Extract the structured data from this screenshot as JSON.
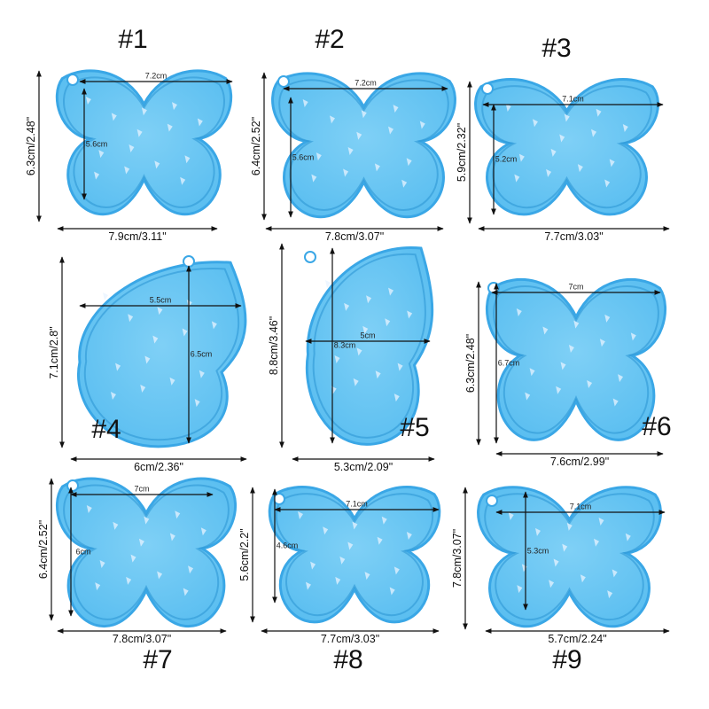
{
  "molds": [
    {
      "number": "#1",
      "height_label": "6.3cm/2.48\"",
      "width_label": "7.9cm/3.11\"",
      "inner_width": "7.2cm",
      "inner_height": "5.6cm"
    },
    {
      "number": "#2",
      "height_label": "6.4cm/2.52\"",
      "width_label": "7.8cm/3.07\"",
      "inner_width": "7.2cm",
      "inner_height": "5.6cm"
    },
    {
      "number": "#3",
      "height_label": "5.9cm/2.32\"",
      "width_label": "7.7cm/3.03\"",
      "inner_width": "7.1cm",
      "inner_height": "5.2cm"
    },
    {
      "number": "#4",
      "height_label": "7.1cm/2.8\"",
      "width_label": "6cm/2.36\"",
      "inner_width": "5.5cm",
      "inner_height": "6.5cm"
    },
    {
      "number": "#5",
      "height_label": "8.8cm/3.46\"",
      "width_label": "5.3cm/2.09\"",
      "inner_width": "5cm",
      "inner_height": "8.3cm"
    },
    {
      "number": "#6",
      "height_label": "6.3cm/2.48\"",
      "width_label": "7.6cm/2.99\"",
      "inner_width": "7cm",
      "inner_height": "6.7cm"
    },
    {
      "number": "#7",
      "height_label": "6.4cm/2.52\"",
      "width_label": "7.8cm/3.07\"",
      "inner_width": "7cm",
      "inner_height": "6cm"
    },
    {
      "number": "#8",
      "height_label": "5.6cm/2.2\"",
      "width_label": "7.7cm/3.03\"",
      "inner_width": "7.1cm",
      "inner_height": "4.6cm"
    },
    {
      "number": "#9",
      "height_label": "7.8cm/3.07\"",
      "width_label": "5.7cm/2.24\"",
      "inner_width": "7.1cm",
      "inner_height": "5.3cm"
    }
  ],
  "colors": {
    "mold_blue": "#58bdf0",
    "mold_edge": "#3aa7e6",
    "mold_inner": "#7fd0f6",
    "holo": "#e8f3ff",
    "line": "#111111"
  }
}
